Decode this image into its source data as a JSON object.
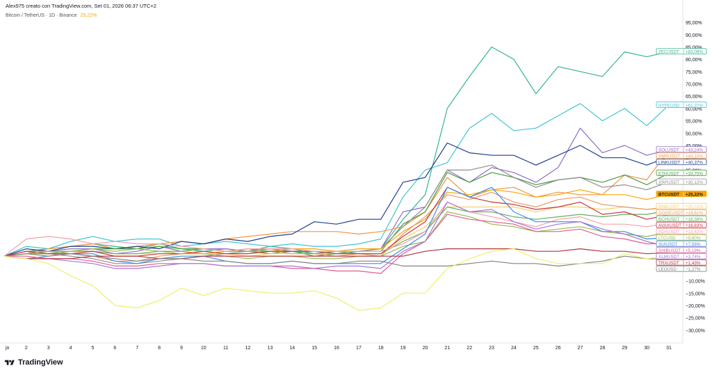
{
  "header": {
    "credit": "Alex975 creato con TradingView.com, Set 01, 2026 06:37 UTC+2",
    "symbol": "Bitcoin / TetherUS · 1D · Binance",
    "symbol_change": "25,22%"
  },
  "footer": {
    "logo_text": "TradingView"
  },
  "chart_data": {
    "type": "line",
    "y_unit": "%",
    "ylim": [
      -33,
      97
    ],
    "y_ticks": [
      95,
      90,
      85,
      80,
      75,
      70,
      65,
      60,
      55,
      50,
      45,
      40,
      35,
      30,
      25,
      20,
      15,
      10,
      5,
      0,
      -5,
      -10,
      -15,
      -20,
      -25,
      -30
    ],
    "y_tick_labels": [
      "95,00%",
      "90,00%",
      "85,00%",
      "80,00%",
      "75,00%",
      "70,00%",
      "65,00%",
      "60,00%",
      "55,00%",
      "50,00%",
      "45,00%",
      "40,00%",
      "35,00%",
      "30,00%",
      "25,00%",
      "20,00%",
      "15,00%",
      "10,00%",
      "5,00%",
      "0,00%",
      "−5,00%",
      "−10,00%",
      "−15,00%",
      "−20,00%",
      "−25,00%",
      "−30,00%"
    ],
    "x": [
      1,
      2,
      3,
      4,
      5,
      6,
      7,
      8,
      9,
      10,
      11,
      12,
      13,
      14,
      15,
      16,
      17,
      18,
      19,
      20,
      21,
      22,
      23,
      24,
      25,
      26,
      27,
      28,
      29,
      30,
      31
    ],
    "x_tick_labels": [
      "jo",
      "2",
      "3",
      "4",
      "5",
      "6",
      "7",
      "8",
      "9",
      "10",
      "11",
      "12",
      "13",
      "14",
      "15",
      "16",
      "17",
      "18",
      "19",
      "20",
      "21",
      "22",
      "23",
      "24",
      "25",
      "26",
      "27",
      "28",
      "29",
      "30",
      "31"
    ],
    "series": [
      {
        "name": "ZECUSDT",
        "label": "+83,09%",
        "color": "#35b58d",
        "values": [
          0,
          2,
          3,
          4,
          5,
          4,
          3,
          5,
          3,
          2,
          3,
          2,
          4,
          3,
          1,
          2,
          2,
          3,
          15,
          25,
          60,
          73,
          85,
          80,
          66,
          77,
          75,
          73,
          83,
          81,
          83.09
        ]
      },
      {
        "name": "HYPEUSD",
        "label": "+61,37%",
        "color": "#41c4d3",
        "values": [
          0,
          4,
          3,
          6,
          8,
          6,
          7,
          7,
          4,
          5,
          6,
          5,
          4,
          5,
          4,
          4,
          5,
          7,
          24,
          35,
          38,
          52,
          58,
          51,
          52,
          57,
          62,
          55,
          60,
          53,
          61.37
        ]
      },
      {
        "name": "SOLUSDT",
        "label": "+43,24%",
        "color": "#8e6cc7",
        "values": [
          0,
          2,
          2,
          3,
          3,
          1,
          2,
          4,
          2,
          3,
          3,
          2,
          3,
          2,
          1,
          1,
          2,
          3,
          18,
          20,
          35,
          30,
          36,
          34,
          30,
          36,
          52,
          42,
          45,
          41,
          43.24
        ]
      },
      {
        "name": "XMRUSDT",
        "label": "+43,10%",
        "color": "#f39543",
        "values": [
          0,
          1,
          3,
          4,
          5,
          3,
          4,
          5,
          6,
          5,
          7,
          8,
          9,
          10,
          10,
          10,
          9,
          10,
          12,
          18,
          32,
          24,
          27,
          28,
          24,
          26,
          25,
          25,
          33,
          31,
          43.1
        ]
      },
      {
        "name": "LINKUSDT",
        "label": "+40,37%",
        "color": "#1f3e8e",
        "values": [
          0,
          3,
          2,
          4,
          4,
          3,
          4,
          3,
          6,
          5,
          7,
          6,
          8,
          9,
          14,
          13,
          15,
          15,
          30,
          32,
          46,
          42,
          41,
          41,
          37,
          41,
          45,
          40,
          40,
          37,
          40.37
        ]
      },
      {
        "name": "ETHUSDT",
        "label": "+33,75%",
        "color": "#4a9b42",
        "values": [
          0,
          1,
          2,
          2,
          3,
          3,
          3,
          4,
          3,
          3,
          2,
          2,
          1,
          2,
          0,
          1,
          2,
          2,
          13,
          18,
          34,
          30,
          34,
          32,
          29,
          31,
          32,
          30,
          33,
          29,
          33.75
        ]
      },
      {
        "name": "XRPUSDT",
        "label": "+30,12%",
        "color": "#8e8e8e",
        "values": [
          0,
          2,
          1,
          0,
          -1,
          -3,
          -3,
          -2,
          -1,
          0,
          1,
          2,
          2,
          2,
          2,
          1,
          2,
          3,
          12,
          20,
          35,
          35,
          37,
          32,
          28,
          31,
          32,
          28,
          29,
          27,
          30.12
        ]
      },
      {
        "name": "BTCUSDT",
        "label": "+25,22%",
        "color": "#f7a600",
        "values": [
          0,
          1,
          1,
          2,
          2,
          1,
          1,
          2,
          2,
          1,
          2,
          2,
          2,
          3,
          3,
          2,
          3,
          3,
          10,
          15,
          26,
          25,
          27,
          26,
          24,
          25,
          27,
          25,
          25,
          23,
          25.22
        ]
      },
      {
        "name": "BNBUSDT",
        "label": "+20,22%",
        "color": "#f6d06b",
        "values": [
          0,
          1,
          1,
          1,
          2,
          1,
          1,
          1,
          1,
          1,
          1,
          0,
          1,
          1,
          1,
          1,
          1,
          1,
          7,
          12,
          20,
          20,
          20,
          20,
          18,
          20,
          20,
          19,
          20,
          19,
          20.22
        ]
      },
      {
        "name": "DOGEUSDT",
        "label": "+19,61%",
        "color": "#e99a66",
        "values": [
          0,
          2,
          2,
          1,
          0,
          -2,
          -2,
          0,
          1,
          2,
          1,
          1,
          2,
          1,
          1,
          0,
          1,
          0,
          9,
          16,
          25,
          23,
          26,
          22,
          20,
          23,
          24,
          21,
          20,
          19,
          19.61
        ]
      },
      {
        "name": "BCHUSDT",
        "label": "+18,58%",
        "color": "#64b163",
        "values": [
          0,
          1,
          1,
          2,
          2,
          1,
          1,
          2,
          2,
          3,
          2,
          3,
          2,
          2,
          1,
          2,
          1,
          1,
          6,
          10,
          20,
          18,
          18,
          16,
          15,
          16,
          17,
          16,
          17,
          17,
          18.58
        ]
      },
      {
        "name": "AVAXUSDT",
        "label": "+16,83%",
        "color": "#c8323f",
        "values": [
          0,
          2,
          1,
          1,
          2,
          0,
          0,
          1,
          1,
          2,
          1,
          1,
          2,
          2,
          2,
          1,
          1,
          1,
          8,
          14,
          28,
          24,
          22,
          21,
          19,
          20,
          22,
          17,
          18,
          15,
          16.83
        ]
      },
      {
        "name": "ADAUSDT",
        "label": "+13,42%",
        "color": "#f5a0a7",
        "values": [
          0,
          7,
          8,
          7,
          5,
          6,
          5,
          5,
          4,
          3,
          2,
          3,
          3,
          3,
          2,
          2,
          2,
          2,
          5,
          10,
          22,
          18,
          16,
          14,
          12,
          15,
          16,
          13,
          13,
          12,
          13.42
        ]
      },
      {
        "name": "LTCUSD",
        "label": "+9,80%",
        "color": "#9cb84b",
        "values": [
          0,
          1,
          2,
          2,
          3,
          2,
          3,
          2,
          1,
          1,
          0,
          -1,
          0,
          0,
          -1,
          -1,
          0,
          0,
          4,
          6,
          18,
          16,
          13,
          12,
          10,
          11,
          12,
          10,
          9,
          8,
          9.8
        ]
      },
      {
        "name": "SUIUSDT",
        "label": "+7,58%",
        "color": "#3a8ee6",
        "values": [
          0,
          -1,
          0,
          1,
          1,
          -2,
          -3,
          -1,
          0,
          0,
          -2,
          -3,
          -3,
          -2,
          -3,
          -3,
          -3,
          -3,
          3,
          9,
          28,
          24,
          28,
          18,
          14,
          14,
          14,
          10,
          10,
          7,
          7.58
        ]
      },
      {
        "name": "SHIBUSDT",
        "label": "+5,19%",
        "color": "#e25c8e",
        "values": [
          0,
          0,
          -1,
          -1,
          -2,
          -4,
          -4,
          -3,
          -3,
          -3,
          -4,
          -4,
          -4,
          -5,
          -5,
          -6,
          -6,
          -7,
          1,
          6,
          17,
          15,
          14,
          13,
          10,
          10,
          11,
          8,
          7,
          5,
          5.19
        ]
      },
      {
        "name": "XLMUSDT",
        "label": "+3,74%",
        "color": "#a975d8",
        "values": [
          0,
          -1,
          -1,
          -2,
          -3,
          -5,
          -5,
          -4,
          -3,
          -3,
          -4,
          -4,
          -4,
          -4,
          -5,
          -4,
          -4,
          -5,
          2,
          6,
          22,
          18,
          19,
          14,
          11,
          13,
          14,
          11,
          9,
          6,
          3.74
        ]
      },
      {
        "name": "TRXUSDT",
        "label": "+1,43%",
        "color": "#b5303a",
        "values": [
          0,
          -1,
          -1,
          -1,
          0,
          0,
          0,
          -1,
          -1,
          0,
          0,
          0,
          0,
          0,
          0,
          0,
          0,
          0,
          0,
          2,
          3,
          3,
          3,
          3,
          2,
          2,
          3,
          2,
          2,
          1,
          1.43
        ]
      },
      {
        "name": "LEOUSD",
        "label": "−1,27%",
        "color": "#828282",
        "values": [
          0,
          1,
          0,
          1,
          0,
          -1,
          -2,
          -1,
          -1,
          -2,
          -2,
          -3,
          -3,
          -2,
          -3,
          -3,
          -2,
          -2,
          -4,
          -4,
          -4,
          -3,
          -2,
          -3,
          -3,
          -4,
          -3,
          -2,
          0,
          -1,
          -1.27
        ]
      },
      {
        "name": "",
        "label": "",
        "color": "#edf06a",
        "values": [
          0,
          -1,
          -3,
          -8,
          -12,
          -20,
          -21,
          -18,
          -13,
          -16,
          -13,
          -14,
          -15,
          -15,
          -14,
          -17,
          -22,
          -21,
          -15,
          -15,
          -5,
          -1,
          2,
          3,
          -1,
          -3,
          -3,
          -3,
          1,
          -1,
          0
        ]
      }
    ],
    "grid": false,
    "legend": "right-axis"
  }
}
